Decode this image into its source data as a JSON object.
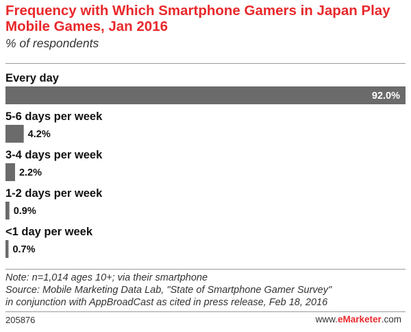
{
  "header": {
    "title": "Frequency with Which Smartphone Gamers in Japan Play Mobile Games, Jan 2016",
    "subtitle": "% of respondents"
  },
  "chart_data": {
    "type": "bar",
    "orientation": "horizontal",
    "title": "Frequency with Which Smartphone Gamers in Japan Play Mobile Games, Jan 2016",
    "subtitle": "% of respondents",
    "categories": [
      "Every day",
      "5-6 days per week",
      "3-4 days per week",
      "1-2 days per week",
      "<1 day per week"
    ],
    "values": [
      92.0,
      4.2,
      2.2,
      0.9,
      0.7
    ],
    "value_labels": [
      "92.0%",
      "4.2%",
      "2.2%",
      "0.9%",
      "0.7%"
    ],
    "xlim": [
      0,
      92.0
    ],
    "grid": false,
    "bar_color": "#6b6b6b"
  },
  "footer": {
    "note_lines": [
      "Note: n=1,014 ages 10+; via their smartphone",
      "Source: Mobile Marketing Data Lab, \"State of Smartphone Gamer Survey\"",
      "in conjunction with AppBroadCast as cited in press release, Feb 18, 2016"
    ],
    "chart_id": "205876",
    "brand_prefix": "www.",
    "brand_name": "eMarketer",
    "brand_suffix": ".com"
  },
  "colors": {
    "accent": "#e8282b",
    "bar": "#6b6b6b"
  }
}
